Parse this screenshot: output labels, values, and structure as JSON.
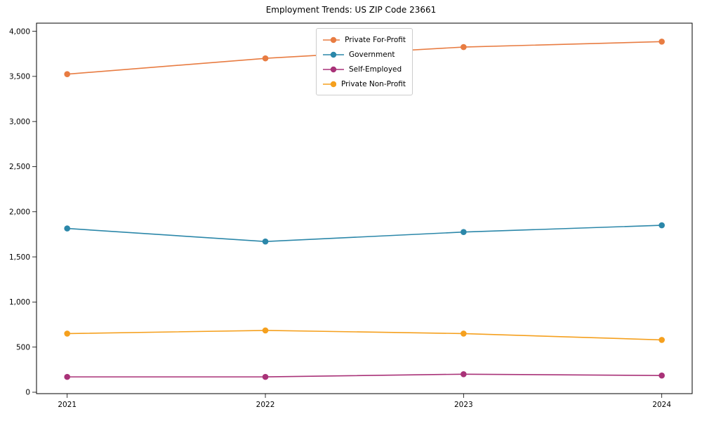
{
  "chart_data": {
    "type": "line",
    "title": "Employment Trends: US ZIP Code 23661",
    "x": [
      "2021",
      "2022",
      "2023",
      "2024"
    ],
    "xlabel": "",
    "ylabel": "",
    "ylim": [
      0,
      4000
    ],
    "yticks": [
      "0",
      "500",
      "1,000",
      "1,500",
      "2,000",
      "2,500",
      "3,000",
      "3,500",
      "4,000"
    ],
    "grid": false,
    "legend_position": "upper center",
    "series": [
      {
        "name": "Private For-Profit",
        "color": "#e87c42",
        "values": [
          3525,
          3700,
          3825,
          3885
        ]
      },
      {
        "name": "Government",
        "color": "#2b87a9",
        "values": [
          1815,
          1670,
          1775,
          1850
        ]
      },
      {
        "name": "Self-Employed",
        "color": "#a93278",
        "values": [
          170,
          170,
          200,
          185
        ]
      },
      {
        "name": "Private Non-Profit",
        "color": "#f5a01e",
        "values": [
          650,
          685,
          650,
          580
        ]
      }
    ]
  }
}
